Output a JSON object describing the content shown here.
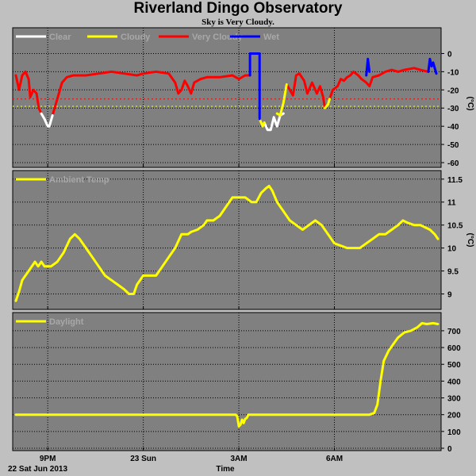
{
  "header": {
    "title": "Riverland Dingo Observatory",
    "subtitle": "Sky is Very Cloudy."
  },
  "footer": {
    "date_label": "22 Sat Jun 2013",
    "time_axis_label": "Time"
  },
  "colors": {
    "panel_bg": "#808080",
    "page_bg": "#c0c0c0",
    "clear": "#ffffff",
    "cloudy": "#ffff00",
    "very_cloudy": "#ff0000",
    "wet": "#0000ff",
    "ambient": "#ffff00",
    "daylight": "#ffff00"
  },
  "x_axis": {
    "range": [
      19.9,
      33.35
    ],
    "ticks": [
      {
        "label": "9PM",
        "value": 21
      },
      {
        "label": "23 Sun",
        "value": 24
      },
      {
        "label": "3AM",
        "value": 27
      },
      {
        "label": "6AM",
        "value": 30
      }
    ]
  },
  "chart_data": [
    {
      "type": "line",
      "ylabel": "(°C)",
      "ylim": [
        -60,
        5
      ],
      "yticks": [
        0,
        -10,
        -20,
        -30,
        -40,
        -50,
        -60
      ],
      "thresholds": [
        {
          "y": -25,
          "color": "#ff0000"
        },
        {
          "y": -29,
          "color": "#ffff00"
        }
      ],
      "legend": [
        "Clear",
        "Cloudy",
        "Very Cloudy",
        "Wet"
      ],
      "series": [
        {
          "name": "Very Cloudy",
          "color": "#ff0000",
          "segments": [
            [
              [
                20.0,
                -12
              ],
              [
                20.1,
                -20
              ],
              [
                20.2,
                -12
              ],
              [
                20.3,
                -10
              ],
              [
                20.4,
                -14
              ],
              [
                20.45,
                -24
              ],
              [
                20.55,
                -20
              ],
              [
                20.65,
                -22
              ],
              [
                20.72,
                -30
              ],
              [
                20.8,
                -33
              ]
            ],
            [
              [
                21.15,
                -34
              ],
              [
                21.3,
                -25
              ],
              [
                21.45,
                -16
              ],
              [
                21.6,
                -13
              ],
              [
                21.8,
                -12
              ],
              [
                22.2,
                -12
              ],
              [
                22.6,
                -11
              ],
              [
                23.0,
                -10
              ],
              [
                23.4,
                -11
              ],
              [
                23.8,
                -12
              ],
              [
                24.0,
                -11
              ],
              [
                24.4,
                -10
              ],
              [
                24.8,
                -11
              ],
              [
                25.0,
                -16
              ],
              [
                25.1,
                -22
              ],
              [
                25.2,
                -20
              ],
              [
                25.3,
                -15
              ],
              [
                25.4,
                -18
              ],
              [
                25.5,
                -22
              ],
              [
                25.6,
                -16
              ],
              [
                25.8,
                -14
              ],
              [
                26.0,
                -13
              ],
              [
                26.4,
                -13
              ],
              [
                26.8,
                -12
              ],
              [
                27.0,
                -14
              ],
              [
                27.2,
                -12
              ],
              [
                27.35,
                -12
              ]
            ],
            [
              [
                28.5,
                -17
              ],
              [
                28.6,
                -20
              ],
              [
                28.7,
                -23
              ],
              [
                28.8,
                -12
              ],
              [
                28.9,
                -11
              ],
              [
                29.05,
                -15
              ],
              [
                29.15,
                -22
              ],
              [
                29.3,
                -16
              ],
              [
                29.45,
                -22
              ],
              [
                29.55,
                -18
              ],
              [
                29.65,
                -24
              ],
              [
                29.7,
                -30
              ]
            ],
            [
              [
                29.85,
                -25
              ],
              [
                29.95,
                -20
              ],
              [
                30.1,
                -18
              ],
              [
                30.2,
                -14
              ],
              [
                30.3,
                -15
              ],
              [
                30.4,
                -13
              ],
              [
                30.5,
                -12
              ],
              [
                30.6,
                -10
              ],
              [
                30.75,
                -12
              ],
              [
                30.85,
                -14
              ],
              [
                31.0,
                -16
              ],
              [
                31.1,
                -18
              ],
              [
                31.2,
                -13
              ],
              [
                31.4,
                -12
              ],
              [
                31.6,
                -10
              ],
              [
                31.8,
                -9
              ],
              [
                32.0,
                -10
              ],
              [
                32.2,
                -9
              ],
              [
                32.5,
                -8
              ],
              [
                32.7,
                -9
              ],
              [
                32.95,
                -10
              ]
            ]
          ]
        },
        {
          "name": "Clear",
          "color": "#ffffff",
          "segments": [
            [
              [
                20.8,
                -33
              ],
              [
                20.9,
                -36
              ],
              [
                21.0,
                -40
              ],
              [
                21.05,
                -40
              ],
              [
                21.1,
                -37
              ],
              [
                21.15,
                -34
              ]
            ],
            [
              [
                27.8,
                -38
              ],
              [
                27.9,
                -42
              ],
              [
                28.0,
                -42
              ],
              [
                28.1,
                -35
              ],
              [
                28.2,
                -40
              ],
              [
                28.3,
                -34
              ],
              [
                28.4,
                -33
              ]
            ]
          ]
        },
        {
          "name": "Cloudy",
          "color": "#ffff00",
          "segments": [
            [
              [
                27.65,
                -36
              ],
              [
                27.75,
                -40
              ],
              [
                27.8,
                -38
              ]
            ],
            [
              [
                28.2,
                -33
              ],
              [
                28.3,
                -34
              ],
              [
                28.4,
                -27
              ],
              [
                28.5,
                -17
              ]
            ],
            [
              [
                29.7,
                -30
              ],
              [
                29.8,
                -28
              ],
              [
                29.85,
                -25
              ]
            ]
          ]
        },
        {
          "name": "Wet",
          "color": "#0000ff",
          "segments": [
            [
              [
                27.35,
                -12
              ],
              [
                27.35,
                0
              ],
              [
                27.65,
                0
              ],
              [
                27.65,
                -36
              ]
            ],
            [
              [
                31.0,
                -12
              ],
              [
                31.05,
                -3
              ],
              [
                31.1,
                -10
              ]
            ],
            [
              [
                32.95,
                -10
              ],
              [
                33.0,
                -3
              ],
              [
                33.05,
                -7
              ],
              [
                33.1,
                -5
              ],
              [
                33.2,
                -11
              ]
            ]
          ]
        }
      ]
    },
    {
      "type": "line",
      "ylabel": "(°C)",
      "ylim": [
        8.75,
        11.6
      ],
      "yticks": [
        9.0,
        9.5,
        10.0,
        10.5,
        11.0,
        11.5
      ],
      "legend": [
        "Ambient Temp"
      ],
      "series": [
        {
          "name": "Ambient Temp",
          "color": "#ffff00",
          "segments": [
            [
              [
                20.0,
                8.85
              ],
              [
                20.1,
                9.05
              ],
              [
                20.2,
                9.3
              ],
              [
                20.4,
                9.5
              ],
              [
                20.6,
                9.7
              ],
              [
                20.7,
                9.6
              ],
              [
                20.8,
                9.7
              ],
              [
                20.9,
                9.6
              ],
              [
                21.1,
                9.6
              ],
              [
                21.3,
                9.7
              ],
              [
                21.5,
                9.9
              ],
              [
                21.7,
                10.2
              ],
              [
                21.85,
                10.3
              ],
              [
                22.0,
                10.2
              ],
              [
                22.2,
                10.0
              ],
              [
                22.4,
                9.8
              ],
              [
                22.6,
                9.6
              ],
              [
                22.8,
                9.4
              ],
              [
                23.0,
                9.3
              ],
              [
                23.2,
                9.2
              ],
              [
                23.4,
                9.1
              ],
              [
                23.55,
                9.0
              ],
              [
                23.7,
                9.0
              ],
              [
                23.8,
                9.2
              ],
              [
                24.0,
                9.4
              ],
              [
                24.2,
                9.4
              ],
              [
                24.4,
                9.4
              ],
              [
                24.6,
                9.6
              ],
              [
                24.8,
                9.8
              ],
              [
                25.0,
                10.0
              ],
              [
                25.2,
                10.3
              ],
              [
                25.4,
                10.3
              ],
              [
                25.5,
                10.35
              ],
              [
                25.7,
                10.4
              ],
              [
                25.9,
                10.5
              ],
              [
                26.0,
                10.6
              ],
              [
                26.2,
                10.6
              ],
              [
                26.4,
                10.7
              ],
              [
                26.6,
                10.9
              ],
              [
                26.8,
                11.1
              ],
              [
                27.0,
                11.1
              ],
              [
                27.2,
                11.1
              ],
              [
                27.4,
                11.0
              ],
              [
                27.55,
                11.0
              ],
              [
                27.7,
                11.2
              ],
              [
                27.85,
                11.3
              ],
              [
                27.95,
                11.35
              ],
              [
                28.05,
                11.25
              ],
              [
                28.2,
                11.0
              ],
              [
                28.4,
                10.8
              ],
              [
                28.6,
                10.6
              ],
              [
                28.8,
                10.5
              ],
              [
                29.0,
                10.4
              ],
              [
                29.2,
                10.5
              ],
              [
                29.4,
                10.6
              ],
              [
                29.6,
                10.5
              ],
              [
                29.8,
                10.3
              ],
              [
                30.0,
                10.1
              ],
              [
                30.2,
                10.05
              ],
              [
                30.4,
                10.0
              ],
              [
                30.6,
                10.0
              ],
              [
                30.8,
                10.0
              ],
              [
                31.0,
                10.1
              ],
              [
                31.2,
                10.2
              ],
              [
                31.4,
                10.3
              ],
              [
                31.6,
                10.3
              ],
              [
                31.8,
                10.4
              ],
              [
                32.0,
                10.5
              ],
              [
                32.15,
                10.6
              ],
              [
                32.3,
                10.55
              ],
              [
                32.5,
                10.5
              ],
              [
                32.7,
                10.5
              ],
              [
                32.85,
                10.45
              ],
              [
                33.0,
                10.4
              ],
              [
                33.15,
                10.3
              ],
              [
                33.25,
                10.2
              ]
            ]
          ]
        }
      ]
    },
    {
      "type": "line",
      "ylabel": "",
      "ylim": [
        0,
        780
      ],
      "yticks": [
        0,
        100,
        200,
        300,
        400,
        500,
        600,
        700
      ],
      "legend": [
        "Daylight"
      ],
      "series": [
        {
          "name": "Daylight",
          "color": "#ffff00",
          "segments": [
            [
              [
                20.0,
                200
              ],
              [
                26.9,
                200
              ],
              [
                26.95,
                190
              ],
              [
                27.0,
                130
              ],
              [
                27.05,
                140
              ],
              [
                27.1,
                170
              ],
              [
                27.15,
                150
              ],
              [
                27.2,
                175
              ],
              [
                27.25,
                180
              ],
              [
                27.3,
                200
              ],
              [
                27.4,
                200
              ],
              [
                31.1,
                200
              ],
              [
                31.25,
                210
              ],
              [
                31.35,
                260
              ],
              [
                31.45,
                400
              ],
              [
                31.55,
                520
              ],
              [
                31.7,
                580
              ],
              [
                31.85,
                620
              ],
              [
                32.0,
                660
              ],
              [
                32.2,
                690
              ],
              [
                32.4,
                700
              ],
              [
                32.6,
                720
              ],
              [
                32.75,
                745
              ],
              [
                32.9,
                740
              ],
              [
                33.1,
                745
              ],
              [
                33.25,
                740
              ]
            ]
          ]
        }
      ]
    }
  ]
}
